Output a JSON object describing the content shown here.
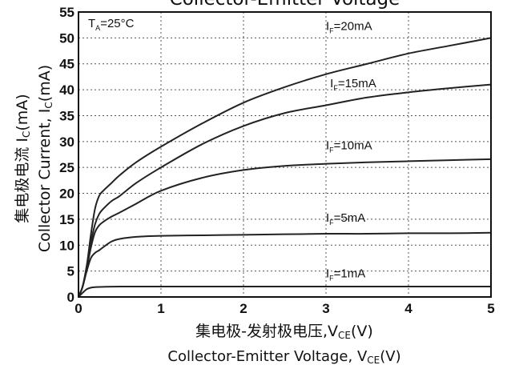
{
  "chart_data": {
    "type": "line",
    "title": "Collector-Emitter Voltage",
    "xlabel_cn": "集电极-发射极电压,V",
    "xlabel_cn_sub": "CE",
    "xlabel_cn_tail": "(V)",
    "xlabel_en": "Collector-Emitter Voltage, V",
    "xlabel_en_sub": "CE",
    "xlabel_en_tail": "(V)",
    "ylabel_cn": "集电极电流 I",
    "ylabel_cn_sub": "C",
    "ylabel_cn_tail": "(mA)",
    "ylabel_en": "Collector Current, I",
    "ylabel_en_sub": "C",
    "ylabel_en_tail": "(mA)",
    "condition": {
      "main": "T",
      "sub": "A",
      "tail": "=25°C"
    },
    "xlim": [
      0,
      5
    ],
    "ylim": [
      0,
      55
    ],
    "xticks": [
      0,
      1,
      2,
      3,
      4,
      5
    ],
    "yticks": [
      0,
      5,
      10,
      15,
      20,
      25,
      30,
      35,
      40,
      45,
      50,
      55
    ],
    "grid": true,
    "series": [
      {
        "name": "IF=20mA",
        "label_main": "I",
        "label_sub": "F",
        "label_tail": "=20mA",
        "x": [
          0,
          0.05,
          0.1,
          0.15,
          0.2,
          0.25,
          0.3,
          0.4,
          0.5,
          0.7,
          1,
          1.5,
          2,
          2.5,
          3,
          3.5,
          4,
          4.5,
          5
        ],
        "y": [
          0,
          2,
          6,
          12,
          17,
          19.5,
          20.5,
          22,
          23.5,
          26,
          29,
          33.5,
          37.5,
          40.5,
          43,
          45,
          47,
          48.5,
          50
        ]
      },
      {
        "name": "IF=15mA",
        "label_main": "I",
        "label_sub": "F",
        "label_tail": "=15mA",
        "x": [
          0,
          0.05,
          0.1,
          0.15,
          0.2,
          0.25,
          0.3,
          0.4,
          0.5,
          0.7,
          1,
          1.5,
          2,
          2.5,
          3,
          3.5,
          4,
          4.5,
          5
        ],
        "y": [
          0,
          2,
          6,
          10.5,
          14,
          16,
          17,
          18.5,
          19.5,
          22,
          25,
          29.5,
          33,
          35.5,
          37,
          38.5,
          39.5,
          40.3,
          41
        ]
      },
      {
        "name": "IF=10mA",
        "label_main": "I",
        "label_sub": "F",
        "label_tail": "=10mA",
        "x": [
          0,
          0.05,
          0.1,
          0.15,
          0.2,
          0.25,
          0.3,
          0.4,
          0.5,
          0.7,
          1,
          1.5,
          2,
          2.5,
          3,
          3.5,
          4,
          4.5,
          5
        ],
        "y": [
          0,
          2,
          5.5,
          9.5,
          12.5,
          13.8,
          14.5,
          15.5,
          16.3,
          18,
          20.5,
          23,
          24.5,
          25.3,
          25.7,
          26,
          26.2,
          26.4,
          26.6
        ]
      },
      {
        "name": "IF=5mA",
        "label_main": "I",
        "label_sub": "F",
        "label_tail": "=5mA",
        "x": [
          0,
          0.05,
          0.1,
          0.15,
          0.2,
          0.25,
          0.3,
          0.4,
          0.5,
          0.7,
          1,
          1.5,
          2,
          2.5,
          3,
          3.5,
          4,
          4.5,
          5
        ],
        "y": [
          0,
          2,
          5,
          7.5,
          8.5,
          9,
          9.6,
          10.7,
          11.2,
          11.6,
          11.8,
          11.9,
          12,
          12.1,
          12.2,
          12.2,
          12.3,
          12.3,
          12.4
        ]
      },
      {
        "name": "IF=1mA",
        "label_main": "I",
        "label_sub": "F",
        "label_tail": "=1mA",
        "x": [
          0,
          0.05,
          0.1,
          0.15,
          0.2,
          0.3,
          0.5,
          1,
          2,
          3,
          4,
          5
        ],
        "y": [
          0,
          0.8,
          1.5,
          1.8,
          1.9,
          1.95,
          2,
          2,
          2,
          2,
          2,
          2
        ]
      }
    ],
    "label_positions": [
      {
        "x": 3.0,
        "y": 51.5
      },
      {
        "x": 3.05,
        "y": 40.5
      },
      {
        "x": 3.0,
        "y": 28.5
      },
      {
        "x": 3.0,
        "y": 14.5
      },
      {
        "x": 3.0,
        "y": 3.8
      }
    ],
    "colors": {
      "line": "#222222",
      "grid": "#555555",
      "frame": "#111111"
    }
  }
}
